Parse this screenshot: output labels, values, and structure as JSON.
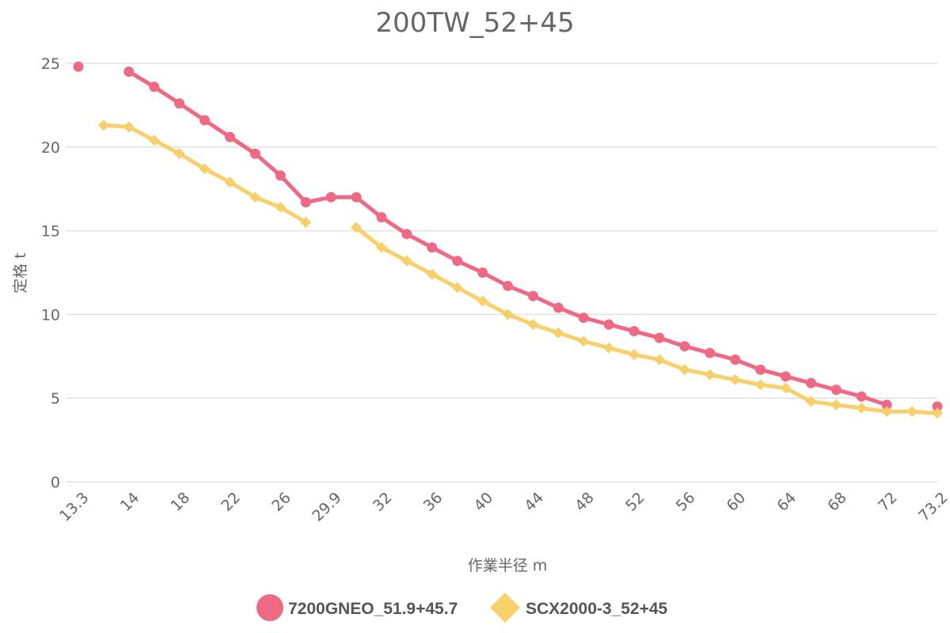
{
  "chart_data": {
    "type": "line",
    "title": "200TW_52+45",
    "xlabel": "作業半径 m",
    "ylabel": "定格 t",
    "ylim": [
      0,
      25
    ],
    "yticks": [
      "0",
      "5",
      "10",
      "15",
      "20",
      "25"
    ],
    "x_tick_labels": [
      "13.3",
      "14",
      "18",
      "22",
      "26",
      "29.9",
      "32",
      "36",
      "40",
      "44",
      "48",
      "52",
      "56",
      "60",
      "64",
      "68",
      "72",
      "73.2"
    ],
    "x": [
      13.3,
      13.5,
      14,
      16,
      18,
      20,
      22,
      24,
      26,
      28,
      29.9,
      30,
      32,
      34,
      36,
      38,
      40,
      42,
      44,
      46,
      48,
      50,
      52,
      54,
      56,
      58,
      60,
      62,
      64,
      66,
      68,
      70,
      72,
      73,
      73.2
    ],
    "grid": true,
    "legend_position": "bottom",
    "series": [
      {
        "name": "7200GNEO_51.9+45.7",
        "color": "#EE6A84",
        "marker": "circle",
        "values": [
          24.8,
          null,
          24.5,
          23.6,
          22.6,
          21.6,
          20.6,
          19.6,
          18.3,
          16.7,
          17.0,
          17.0,
          15.8,
          14.8,
          14.0,
          13.2,
          12.5,
          11.7,
          11.1,
          10.4,
          9.8,
          9.4,
          9.0,
          8.6,
          8.1,
          7.7,
          7.3,
          6.7,
          6.3,
          5.9,
          5.5,
          5.1,
          4.6,
          null,
          4.5
        ]
      },
      {
        "name": "SCX2000-3_52+45",
        "color": "#F7CF6B",
        "marker": "diamond",
        "values": [
          null,
          21.3,
          21.2,
          20.4,
          19.6,
          18.7,
          17.9,
          17.0,
          16.4,
          15.5,
          null,
          15.2,
          14.0,
          13.2,
          12.4,
          11.6,
          10.8,
          10.0,
          9.4,
          8.9,
          8.4,
          8.0,
          7.6,
          7.3,
          6.7,
          6.4,
          6.1,
          5.8,
          5.6,
          4.8,
          4.6,
          4.4,
          4.2,
          4.2,
          4.1
        ]
      }
    ]
  }
}
